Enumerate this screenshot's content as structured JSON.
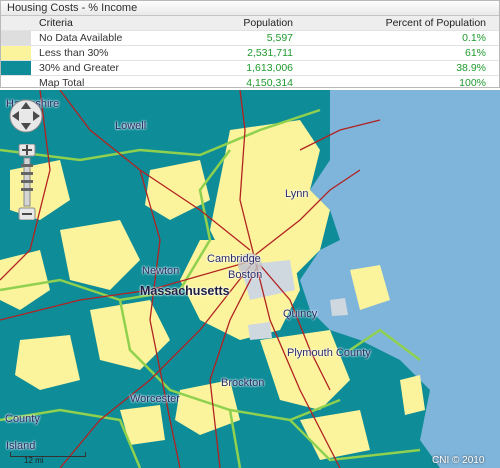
{
  "legend": {
    "title": "Housing Costs - % Income",
    "headers": {
      "criteria": "Criteria",
      "population": "Population",
      "percent": "Percent of Population"
    },
    "rows": [
      {
        "criteria": "No Data Available",
        "population": "5,597",
        "percent": "0.1%",
        "color": "#dedede"
      },
      {
        "criteria": "Less than 30%",
        "population": "2,531,711",
        "percent": "61%",
        "color": "#fbf49c"
      },
      {
        "criteria": "30% and Greater",
        "population": "1,613,006",
        "percent": "38.9%",
        "color": "#0e8c97"
      }
    ],
    "total": {
      "criteria": "Map Total",
      "population": "4,150,314",
      "percent": "100%"
    }
  },
  "map": {
    "places": {
      "hampshire": "Hampshire",
      "lowell": "Lowell",
      "lynn": "Lynn",
      "cambridge": "Cambridge",
      "newton": "Newton",
      "boston": "Boston",
      "massachusetts": "Massachusetts",
      "quincy": "Quincy",
      "plymouth": "Plymouth County",
      "brockton": "Brockton",
      "worcester": "Worcester",
      "county": "County",
      "island": "Island"
    },
    "scale_label": "12 mi",
    "copyright": "CNI © 2010",
    "colors": {
      "water": "#7fb5db",
      "low": "#fbf49c",
      "high": "#0e8c97",
      "border": "#8fd14f",
      "road": "#b22222"
    }
  }
}
